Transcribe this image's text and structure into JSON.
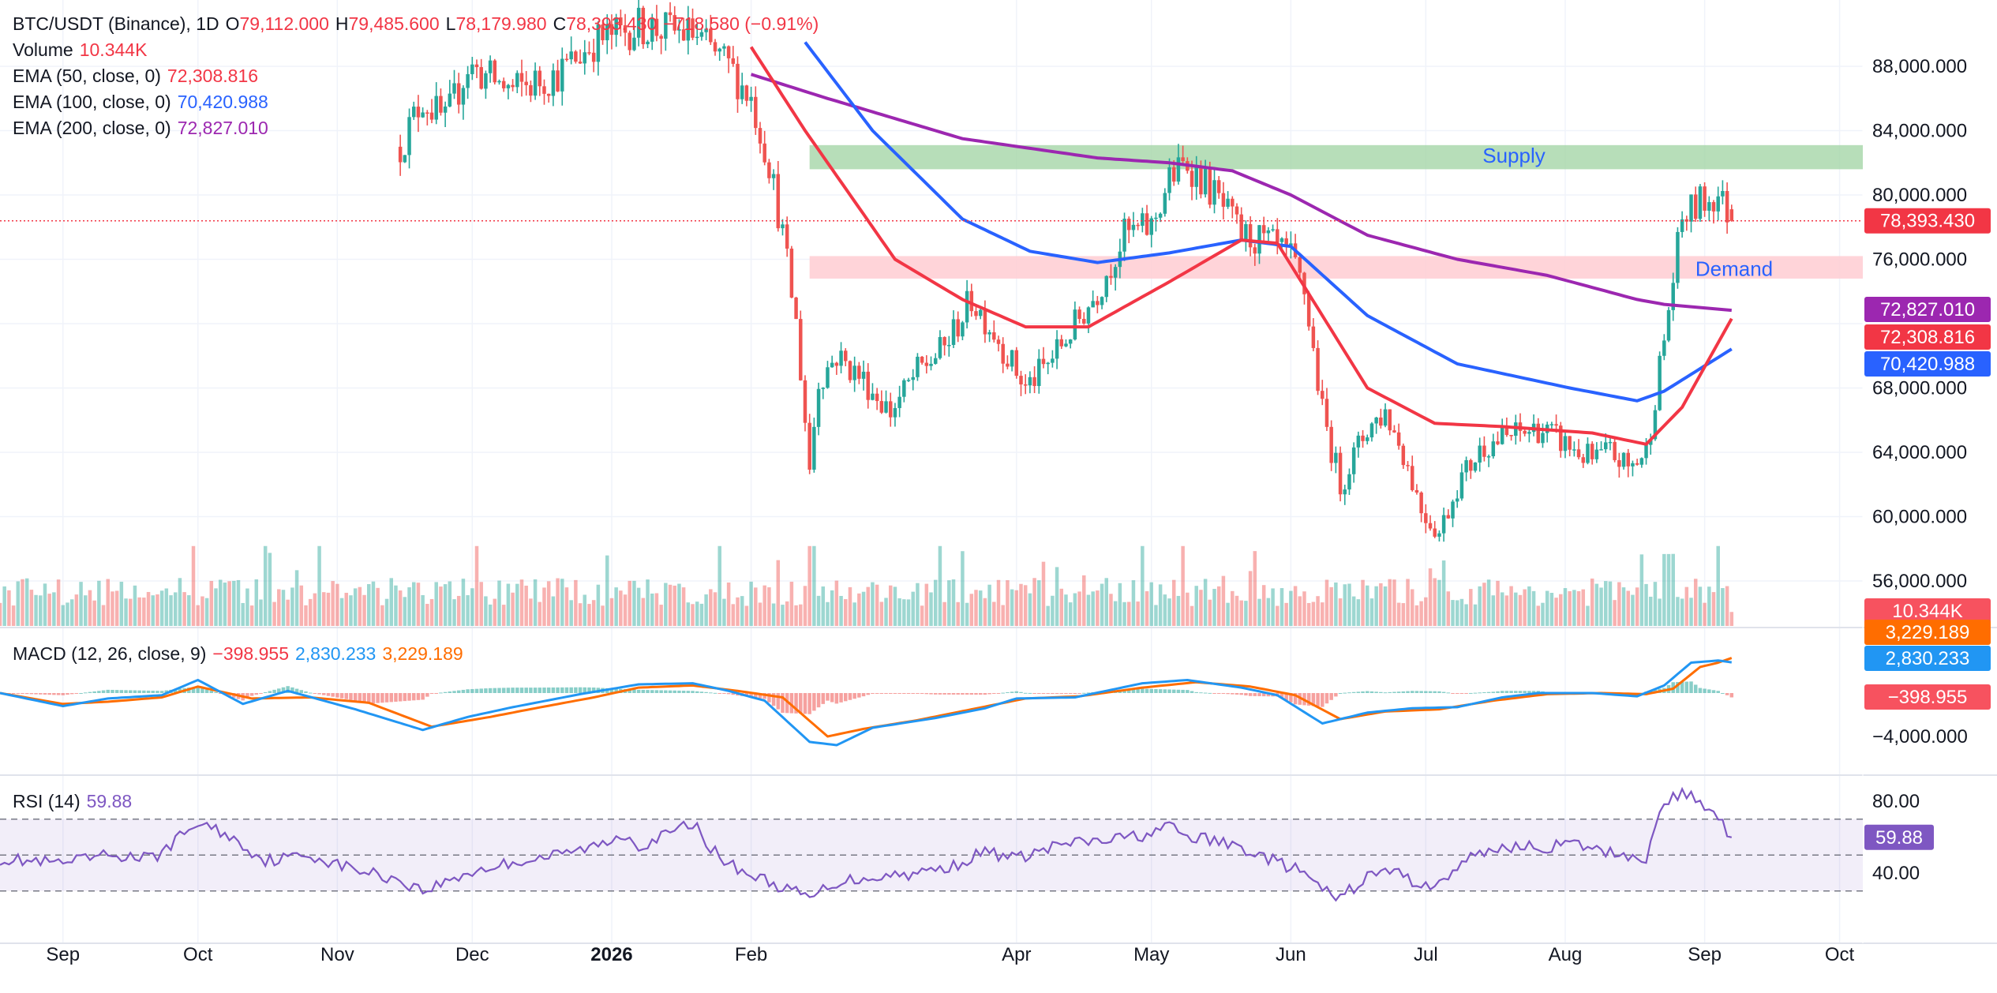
{
  "colors": {
    "up": "#26a69a",
    "down": "#ef5350",
    "ema50": "#f23645",
    "ema100": "#2962ff",
    "ema200": "#9c27b0",
    "macd": "#2196f3",
    "signal": "#ff6d00",
    "rsi": "#7e57c2",
    "supply": "#a5d6a7",
    "demand": "#ffcdd2",
    "zone_text": "#2962ff",
    "last_price": "#f23645",
    "ema200_tag": "#9c27b0",
    "ema50_tag": "#f23645",
    "ema100_tag": "#2962ff",
    "volume_tag": "#f7525f",
    "macd_tag": "#2196f3",
    "signal_tag": "#ff6d00",
    "hist_tag": "#f7525f",
    "rsi_tag": "#7e57c2"
  },
  "header": {
    "symbol": "BTC/USDT (Binance), 1D",
    "o_label": "O",
    "o": "79,112.000",
    "h_label": "H",
    "h": "79,485.600",
    "l_label": "L",
    "l": "78,179.980",
    "c_label": "C",
    "c": "78,393.430",
    "change": "−718.580 (−0.91%)"
  },
  "legend": {
    "volume_label": "Volume",
    "volume": "10.344K",
    "ema50_label": "EMA (50, close, 0)",
    "ema50": "72,308.816",
    "ema100_label": "EMA (100, close, 0)",
    "ema100": "70,420.988",
    "ema200_label": "EMA (200, close, 0)",
    "ema200": "72,827.010",
    "macd_label": "MACD (12, 26, close, 9)",
    "macd_hist": "−398.955",
    "macd_line": "2,830.233",
    "macd_signal": "3,229.189",
    "rsi_label": "RSI (14)",
    "rsi": "59.88"
  },
  "zones": {
    "supply_label": "Supply",
    "demand_label": "Demand"
  },
  "price_tags": {
    "last": "78,393.430",
    "ema200": "72,827.010",
    "ema50": "72,308.816",
    "ema100": "70,420.988",
    "volume": "10.344K",
    "macd_signal": "3,229.189",
    "macd_line": "2,830.233",
    "macd_hist": "−398.955",
    "rsi": "59.88"
  },
  "chart_data": {
    "type": "candlestick",
    "symbol": "BTC/USDT",
    "interval": "1D",
    "y_ticks": [
      "88,000.000",
      "84,000.000",
      "80,000.000",
      "76,000.000",
      "68,000.000",
      "64,000.000",
      "60,000.000",
      "56,000.000"
    ],
    "y_tick_values": [
      88000,
      84000,
      80000,
      76000,
      68000,
      64000,
      60000,
      56000
    ],
    "ylim": [
      54500,
      91000
    ],
    "x_ticks": [
      {
        "label": "Sep",
        "day": 0,
        "bold": false
      },
      {
        "label": "Oct",
        "day": 30,
        "bold": false
      },
      {
        "label": "Nov",
        "day": 61,
        "bold": false
      },
      {
        "label": "Dec",
        "day": 91,
        "bold": false
      },
      {
        "label": "2026",
        "day": 122,
        "bold": true
      },
      {
        "label": "Feb",
        "day": 153,
        "bold": false
      },
      {
        "label": "Apr",
        "day": 212,
        "bold": false
      },
      {
        "label": "May",
        "day": 242,
        "bold": false
      },
      {
        "label": "Jun",
        "day": 273,
        "bold": false
      },
      {
        "label": "Jul",
        "day": 303,
        "bold": false
      },
      {
        "label": "Aug",
        "day": 334,
        "bold": false
      },
      {
        "label": "Sep",
        "day": 365,
        "bold": false
      },
      {
        "label": "Oct",
        "day": 395,
        "bold": false
      }
    ],
    "day_range": [
      -14,
      430
    ],
    "last_day": 371,
    "last_close": 78393.43,
    "price_keypoints": [
      [
        75,
        83000
      ],
      [
        80,
        86000
      ],
      [
        85,
        84500
      ],
      [
        90,
        88000
      ],
      [
        100,
        86500
      ],
      [
        110,
        87500
      ],
      [
        118,
        89500
      ],
      [
        128,
        90500
      ],
      [
        140,
        90000
      ],
      [
        148,
        88000
      ],
      [
        153,
        86000
      ],
      [
        157,
        82000
      ],
      [
        160,
        77500
      ],
      [
        163,
        72000
      ],
      [
        166,
        63000
      ],
      [
        168,
        68500
      ],
      [
        172,
        70000
      ],
      [
        178,
        68500
      ],
      [
        184,
        66500
      ],
      [
        190,
        69000
      ],
      [
        196,
        70500
      ],
      [
        202,
        73500
      ],
      [
        207,
        71500
      ],
      [
        214,
        68000
      ],
      [
        219,
        69500
      ],
      [
        224,
        71500
      ],
      [
        230,
        74000
      ],
      [
        236,
        77500
      ],
      [
        242,
        78000
      ],
      [
        246,
        81000
      ],
      [
        250,
        82000
      ],
      [
        256,
        80000
      ],
      [
        262,
        77500
      ],
      [
        268,
        77000
      ],
      [
        273,
        76000
      ],
      [
        276,
        74000
      ],
      [
        280,
        66500
      ],
      [
        284,
        62000
      ],
      [
        290,
        65500
      ],
      [
        294,
        66500
      ],
      [
        298,
        64000
      ],
      [
        302,
        60500
      ],
      [
        306,
        59000
      ],
      [
        310,
        62000
      ],
      [
        316,
        64500
      ],
      [
        322,
        65000
      ],
      [
        328,
        65500
      ],
      [
        334,
        64500
      ],
      [
        340,
        63500
      ],
      [
        344,
        64000
      ],
      [
        348,
        63000
      ],
      [
        352,
        64000
      ],
      [
        356,
        71000
      ],
      [
        360,
        78500
      ],
      [
        364,
        79500
      ],
      [
        368,
        80000
      ],
      [
        371,
        78393
      ]
    ],
    "ema200_keypoints": [
      [
        153,
        87500
      ],
      [
        170,
        86000
      ],
      [
        200,
        83500
      ],
      [
        230,
        82300
      ],
      [
        246,
        82000
      ],
      [
        260,
        81500
      ],
      [
        273,
        80000
      ],
      [
        290,
        77500
      ],
      [
        310,
        76000
      ],
      [
        330,
        75000
      ],
      [
        350,
        73500
      ],
      [
        356,
        73200
      ],
      [
        371,
        72827
      ]
    ],
    "ema100_keypoints": [
      [
        165,
        89500
      ],
      [
        180,
        84000
      ],
      [
        200,
        78500
      ],
      [
        215,
        76500
      ],
      [
        230,
        75800
      ],
      [
        246,
        76400
      ],
      [
        262,
        77200
      ],
      [
        273,
        76800
      ],
      [
        290,
        72500
      ],
      [
        310,
        69500
      ],
      [
        335,
        68000
      ],
      [
        350,
        67200
      ],
      [
        356,
        67800
      ],
      [
        371,
        70421
      ]
    ],
    "ema50_keypoints": [
      [
        153,
        89200
      ],
      [
        165,
        84000
      ],
      [
        185,
        76000
      ],
      [
        200,
        73500
      ],
      [
        214,
        71800
      ],
      [
        228,
        71800
      ],
      [
        246,
        74600
      ],
      [
        262,
        77200
      ],
      [
        270,
        77000
      ],
      [
        280,
        72500
      ],
      [
        290,
        68000
      ],
      [
        305,
        65800
      ],
      [
        320,
        65600
      ],
      [
        340,
        65200
      ],
      [
        352,
        64500
      ],
      [
        360,
        66800
      ],
      [
        371,
        72309
      ]
    ],
    "supply_zone": [
      81600,
      83100
    ],
    "demand_zone": [
      74800,
      76200
    ],
    "zone_start_day": 166,
    "volume": {
      "last": 10344,
      "max": 59000,
      "unit": "K"
    },
    "macd": {
      "y_ticks": [
        "−4,000.000"
      ],
      "y_tick_values": [
        -4000
      ],
      "ylim": [
        -5800,
        3600
      ],
      "line_keypoints": [
        [
          -14,
          0
        ],
        [
          0,
          -1200
        ],
        [
          10,
          -500
        ],
        [
          22,
          -200
        ],
        [
          30,
          1200
        ],
        [
          40,
          -1000
        ],
        [
          50,
          200
        ],
        [
          65,
          -1500
        ],
        [
          80,
          -3400
        ],
        [
          90,
          -2200
        ],
        [
          100,
          -1300
        ],
        [
          115,
          -100
        ],
        [
          128,
          800
        ],
        [
          140,
          900
        ],
        [
          148,
          200
        ],
        [
          156,
          -700
        ],
        [
          166,
          -4500
        ],
        [
          172,
          -4800
        ],
        [
          180,
          -3200
        ],
        [
          194,
          -2300
        ],
        [
          205,
          -1400
        ],
        [
          212,
          -500
        ],
        [
          225,
          -400
        ],
        [
          240,
          900
        ],
        [
          250,
          1200
        ],
        [
          262,
          500
        ],
        [
          270,
          -200
        ],
        [
          280,
          -2800
        ],
        [
          290,
          -1800
        ],
        [
          300,
          -1400
        ],
        [
          310,
          -1300
        ],
        [
          320,
          -400
        ],
        [
          328,
          0
        ],
        [
          340,
          0
        ],
        [
          350,
          -300
        ],
        [
          356,
          700
        ],
        [
          362,
          2800
        ],
        [
          368,
          3000
        ],
        [
          371,
          2830
        ]
      ],
      "signal_keypoints": [
        [
          -14,
          0
        ],
        [
          0,
          -1000
        ],
        [
          10,
          -800
        ],
        [
          22,
          -400
        ],
        [
          30,
          600
        ],
        [
          42,
          -500
        ],
        [
          55,
          -400
        ],
        [
          68,
          -900
        ],
        [
          82,
          -3100
        ],
        [
          95,
          -2200
        ],
        [
          105,
          -1400
        ],
        [
          118,
          -400
        ],
        [
          128,
          500
        ],
        [
          140,
          700
        ],
        [
          150,
          200
        ],
        [
          160,
          -400
        ],
        [
          170,
          -4000
        ],
        [
          178,
          -3300
        ],
        [
          190,
          -2500
        ],
        [
          202,
          -1500
        ],
        [
          214,
          -500
        ],
        [
          226,
          -300
        ],
        [
          240,
          500
        ],
        [
          252,
          1000
        ],
        [
          264,
          600
        ],
        [
          274,
          -200
        ],
        [
          284,
          -2400
        ],
        [
          294,
          -1700
        ],
        [
          306,
          -1500
        ],
        [
          318,
          -700
        ],
        [
          330,
          -100
        ],
        [
          342,
          0
        ],
        [
          352,
          -100
        ],
        [
          358,
          400
        ],
        [
          364,
          2400
        ],
        [
          368,
          2800
        ],
        [
          371,
          3229
        ]
      ]
    },
    "rsi": {
      "y_ticks": [
        "80.00",
        "40.00"
      ],
      "y_tick_values": [
        80,
        40
      ],
      "ylim": [
        22,
        92
      ],
      "band": [
        30,
        70
      ],
      "mid": 50,
      "last": 59.88,
      "keypoints": [
        [
          -14,
          48
        ],
        [
          0,
          45
        ],
        [
          10,
          50
        ],
        [
          20,
          48
        ],
        [
          30,
          68
        ],
        [
          36,
          62
        ],
        [
          45,
          47
        ],
        [
          55,
          50
        ],
        [
          62,
          44
        ],
        [
          75,
          36
        ],
        [
          80,
          30
        ],
        [
          90,
          40
        ],
        [
          100,
          46
        ],
        [
          110,
          50
        ],
        [
          120,
          56
        ],
        [
          125,
          62
        ],
        [
          128,
          55
        ],
        [
          135,
          62
        ],
        [
          140,
          68
        ],
        [
          146,
          48
        ],
        [
          152,
          40
        ],
        [
          158,
          34
        ],
        [
          166,
          26
        ],
        [
          172,
          35
        ],
        [
          180,
          38
        ],
        [
          190,
          40
        ],
        [
          198,
          44
        ],
        [
          205,
          52
        ],
        [
          212,
          48
        ],
        [
          222,
          56
        ],
        [
          232,
          58
        ],
        [
          242,
          62
        ],
        [
          246,
          66
        ],
        [
          250,
          60
        ],
        [
          256,
          58
        ],
        [
          262,
          54
        ],
        [
          270,
          46
        ],
        [
          276,
          40
        ],
        [
          280,
          30
        ],
        [
          284,
          26
        ],
        [
          290,
          38
        ],
        [
          296,
          42
        ],
        [
          300,
          35
        ],
        [
          306,
          33
        ],
        [
          310,
          44
        ],
        [
          316,
          52
        ],
        [
          322,
          55
        ],
        [
          328,
          54
        ],
        [
          336,
          56
        ],
        [
          342,
          52
        ],
        [
          348,
          50
        ],
        [
          352,
          48
        ],
        [
          356,
          80
        ],
        [
          360,
          84
        ],
        [
          364,
          80
        ],
        [
          368,
          72
        ],
        [
          371,
          59.88
        ]
      ]
    }
  }
}
